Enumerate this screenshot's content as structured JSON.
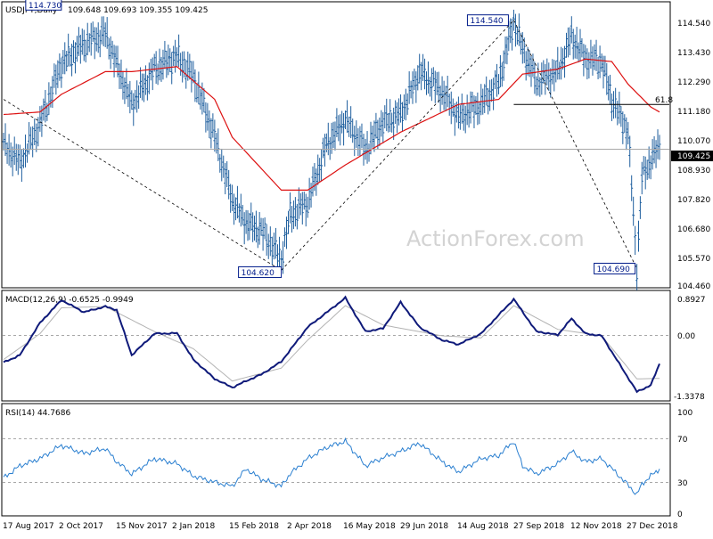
{
  "watermark": "ActionForex.com",
  "colors": {
    "price": "#1f5f9e",
    "sma": "#dd1111",
    "macd": "#0f1a7a",
    "signal": "#b3b3b3",
    "rsi": "#2a7fd0",
    "level_box": "#001b8a",
    "grid": "#a8a8a8"
  },
  "chart_data": [
    {
      "type": "line",
      "title": "USDJPY,Daily",
      "ohlc": "109.648 109.693 109.355 109.425",
      "ylim": [
        104.0,
        115.2
      ],
      "y_ticks": [
        "114.540",
        "113.430",
        "112.290",
        "111.180",
        "110.070",
        "108.930",
        "107.820",
        "106.680",
        "105.570",
        "104.460"
      ],
      "current_label": "109.425",
      "x_dates": [
        "17 Aug 2017",
        "2 Oct 2017",
        "15 Nov 2017",
        "2 Jan 2018",
        "15 Feb 2018",
        "2 Apr 2018",
        "16 May 2018",
        "29 Jun 2018",
        "14 Aug 2018",
        "27 Sep 2018",
        "12 Nov 2018",
        "27 Dec 2018"
      ],
      "series": [
        {
          "kind": "daily-bars",
          "x": [
            "17 Aug 2017",
            "30 Aug 2017",
            "15 Sep 2017",
            "2 Oct 2017",
            "20 Oct 2017",
            "6 Nov 2017",
            "27 Nov 2017",
            "15 Dec 2017",
            "2 Jan 2018",
            "15 Jan 2018",
            "1 Feb 2018",
            "15 Feb 2018",
            "26 Feb 2018",
            "10 Mar 2018",
            "26 Mar 2018",
            "2 Apr 2018",
            "16 Apr 2018",
            "1 May 2018",
            "16 May 2018",
            "1 Jun 2018",
            "15 Jun 2018",
            "29 Jun 2018",
            "14 Jul 2018",
            "1 Aug 2018",
            "14 Aug 2018",
            "1 Sep 2018",
            "15 Sep 2018",
            "27 Sep 2018",
            "4 Oct 2018",
            "15 Oct 2018",
            "1 Nov 2018",
            "12 Nov 2018",
            "23 Nov 2018",
            "6 Dec 2018",
            "14 Dec 2018",
            "20 Dec 2018",
            "27 Dec 2018",
            "3 Jan 2019",
            "7 Jan 2019",
            "14 Jan 2019",
            "21 Jan 2019"
          ],
          "values": [
            109.6,
            108.9,
            110.4,
            112.8,
            113.6,
            114.0,
            111.2,
            112.6,
            113.1,
            112.3,
            109.9,
            107.4,
            106.5,
            106.2,
            105.1,
            106.8,
            107.3,
            109.6,
            110.6,
            109.4,
            110.5,
            110.8,
            112.5,
            111.7,
            110.7,
            111.2,
            112.1,
            114.5,
            113.4,
            112.1,
            112.5,
            113.9,
            113.0,
            112.9,
            111.4,
            110.8,
            110.1,
            104.7,
            108.3,
            109.0,
            109.5
          ]
        },
        {
          "name": "",
          "kind": "sma",
          "x": [
            "17 Aug 2017",
            "15 Sep 2017",
            "2 Oct 2017",
            "6 Nov 2017",
            "27 Nov 2017",
            "2 Jan 2018",
            "1 Feb 2018",
            "15 Feb 2018",
            "26 Mar 2018",
            "16 Apr 2018",
            "16 May 2018",
            "29 Jun 2018",
            "14 Aug 2018",
            "15 Sep 2018",
            "4 Oct 2018",
            "1 Nov 2018",
            "23 Nov 2018",
            "14 Dec 2018",
            "27 Dec 2018",
            "14 Jan 2019",
            "21 Jan 2019"
          ],
          "values": [
            110.8,
            110.9,
            111.6,
            112.5,
            112.5,
            112.7,
            111.4,
            109.9,
            107.8,
            107.8,
            108.8,
            110.1,
            111.2,
            111.4,
            112.4,
            112.6,
            113.0,
            112.9,
            112.0,
            111.1,
            110.9
          ]
        }
      ],
      "annotations": [
        {
          "label": "114.730",
          "x": "2 Oct 2017",
          "y": 114.73
        },
        {
          "label": "104.620",
          "x": "26 Mar 2018",
          "y": 104.62
        },
        {
          "label": "114.540",
          "x": "27 Sep 2018",
          "y": 114.54
        },
        {
          "label": "104.690",
          "x": "3 Jan 2019",
          "y": 104.69
        },
        {
          "label": "61.8",
          "x": "21 Jan 2019",
          "y": 111.2
        }
      ],
      "trendlines": [
        {
          "from": [
            "17 Aug 2017",
            111.4
          ],
          "to": [
            "26 Mar 2018",
            104.62
          ]
        },
        {
          "from": [
            "26 Mar 2018",
            104.62
          ],
          "to": [
            "27 Sep 2018",
            114.54
          ]
        },
        {
          "from": [
            "27 Sep 2018",
            114.54
          ],
          "to": [
            "3 Jan 2019",
            104.69
          ]
        }
      ],
      "hlines": [
        {
          "y": 111.2,
          "from": "27 Sep 2018",
          "to": "21 Jan 2019"
        },
        {
          "y": 109.425,
          "from": "17 Aug 2017",
          "to": "21 Jan 2019"
        }
      ]
    },
    {
      "type": "line",
      "title": "MACD(12,26,9) -0.6525 -0.9949",
      "ylim": [
        -1.45,
        0.95
      ],
      "y_ticks": [
        "0.8927",
        "0.00",
        "-1.3378"
      ],
      "series": [
        {
          "name": "",
          "kind": "macd",
          "x": [
            "17 Aug 2017",
            "30 Aug 2017",
            "15 Sep 2017",
            "2 Oct 2017",
            "20 Oct 2017",
            "6 Nov 2017",
            "15 Nov 2017",
            "27 Nov 2017",
            "15 Dec 2017",
            "2 Jan 2018",
            "15 Jan 2018",
            "1 Feb 2018",
            "15 Feb 2018",
            "26 Feb 2018",
            "10 Mar 2018",
            "26 Mar 2018",
            "16 Apr 2018",
            "16 May 2018",
            "1 Jun 2018",
            "15 Jun 2018",
            "29 Jun 2018",
            "14 Jul 2018",
            "1 Aug 2018",
            "14 Aug 2018",
            "1 Sep 2018",
            "27 Sep 2018",
            "15 Oct 2018",
            "1 Nov 2018",
            "12 Nov 2018",
            "23 Nov 2018",
            "6 Dec 2018",
            "20 Dec 2018",
            "3 Jan 2019",
            "14 Jan 2019",
            "21 Jan 2019"
          ],
          "values": [
            -0.62,
            -0.45,
            0.3,
            0.83,
            0.55,
            0.68,
            0.6,
            -0.45,
            0.05,
            0.06,
            -0.55,
            -1.0,
            -1.2,
            -1.05,
            -0.9,
            -0.6,
            0.2,
            0.88,
            0.1,
            0.17,
            0.78,
            0.2,
            -0.1,
            -0.2,
            0.05,
            0.85,
            0.1,
            0.02,
            0.4,
            0.05,
            0.0,
            -0.65,
            -1.3,
            -1.15,
            -0.65
          ]
        },
        {
          "name": "",
          "kind": "signal",
          "x": [
            "17 Aug 2017",
            "15 Sep 2017",
            "2 Oct 2017",
            "6 Nov 2017",
            "15 Dec 2017",
            "15 Jan 2018",
            "15 Feb 2018",
            "26 Mar 2018",
            "16 Apr 2018",
            "16 May 2018",
            "15 Jun 2018",
            "1 Aug 2018",
            "1 Sep 2018",
            "27 Sep 2018",
            "1 Nov 2018",
            "6 Dec 2018",
            "3 Jan 2019",
            "21 Jan 2019"
          ],
          "values": [
            -0.55,
            0.05,
            0.65,
            0.68,
            0.1,
            -0.3,
            -1.05,
            -0.75,
            -0.1,
            0.7,
            0.25,
            0.0,
            -0.05,
            0.7,
            0.15,
            0.0,
            -1.0,
            -0.99
          ]
        }
      ]
    },
    {
      "type": "line",
      "title": "RSI(14) 44.7686",
      "ylim": [
        0,
        100
      ],
      "y_ticks": [
        "100",
        "70",
        "30",
        "0"
      ],
      "series": [
        {
          "name": "",
          "kind": "rsi",
          "x": [
            "17 Aug 2017",
            "30 Aug 2017",
            "15 Sep 2017",
            "2 Oct 2017",
            "20 Oct 2017",
            "6 Nov 2017",
            "15 Nov 2017",
            "27 Nov 2017",
            "15 Dec 2017",
            "2 Jan 2018",
            "15 Jan 2018",
            "1 Feb 2018",
            "15 Feb 2018",
            "26 Feb 2018",
            "10 Mar 2018",
            "26 Mar 2018",
            "2 Apr 2018",
            "16 Apr 2018",
            "1 May 2018",
            "16 May 2018",
            "1 Jun 2018",
            "15 Jun 2018",
            "29 Jun 2018",
            "14 Jul 2018",
            "1 Aug 2018",
            "14 Aug 2018",
            "1 Sep 2018",
            "15 Sep 2018",
            "27 Sep 2018",
            "4 Oct 2018",
            "15 Oct 2018",
            "1 Nov 2018",
            "12 Nov 2018",
            "23 Nov 2018",
            "6 Dec 2018",
            "20 Dec 2018",
            "3 Jan 2019",
            "7 Jan 2019",
            "14 Jan 2019",
            "21 Jan 2019"
          ],
          "values": [
            36,
            48,
            55,
            68,
            60,
            65,
            52,
            40,
            55,
            50,
            38,
            32,
            28,
            45,
            35,
            28,
            40,
            55,
            66,
            72,
            48,
            56,
            62,
            70,
            52,
            42,
            55,
            58,
            72,
            48,
            40,
            50,
            62,
            52,
            55,
            38,
            20,
            30,
            38,
            45
          ]
        }
      ]
    }
  ]
}
